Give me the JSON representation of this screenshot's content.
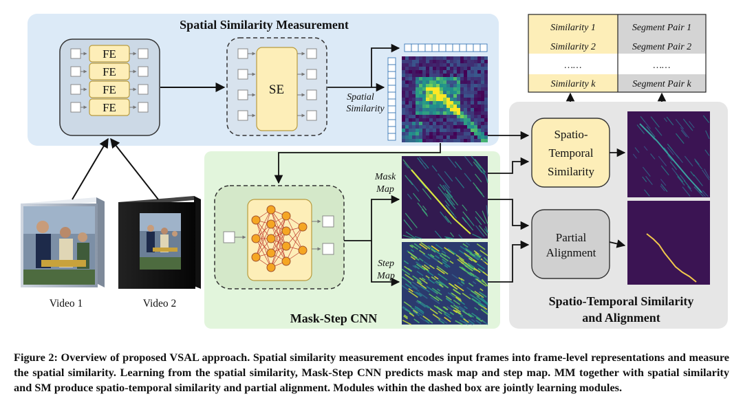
{
  "panels": {
    "spatial": "Spatial Similarity Measurement",
    "mask_step": "Mask-Step CNN",
    "st_line1": "Spatio-Temporal Similarity",
    "st_line2": "and Alignment"
  },
  "modules": {
    "fe": "FE",
    "se": "SE",
    "st_sim": [
      "Spatio-",
      "Temporal",
      "Similarity"
    ],
    "partial": [
      "Partial",
      "Alignment"
    ]
  },
  "labels": {
    "spatial_similarity": [
      "Spatial",
      "Similarity"
    ],
    "mask_map": [
      "Mask",
      "Map"
    ],
    "step_map": [
      "Step",
      "Map"
    ],
    "video1": "Video 1",
    "video2": "Video 2"
  },
  "output_table": {
    "rows": [
      [
        "Similarity 1",
        "Segment Pair 1"
      ],
      [
        "Similarity 2",
        "Segment Pair 2"
      ],
      [
        "……",
        "……"
      ],
      [
        "Similarity k",
        "Segment Pair k"
      ]
    ]
  },
  "caption": "Figure 2: Overview of proposed VSAL approach. Spatial similarity measurement encodes input frames into frame-level representations and measure the spatial similarity. Learning from the spatial similarity, Mask-Step CNN predicts mask map and step map. MM together with spatial similarity and SM produce spatio-temporal similarity and partial alignment. Modules within the dashed box are jointly learning modules.",
  "colors": {
    "spatial_panel": "#dceaf7",
    "mask_panel": "#e2f5dc",
    "st_panel": "#e6e6e6",
    "module_fill": "#fdeeb8",
    "module_stroke": "#b89b3e",
    "heatmap_bg": "#3b1c5a"
  }
}
